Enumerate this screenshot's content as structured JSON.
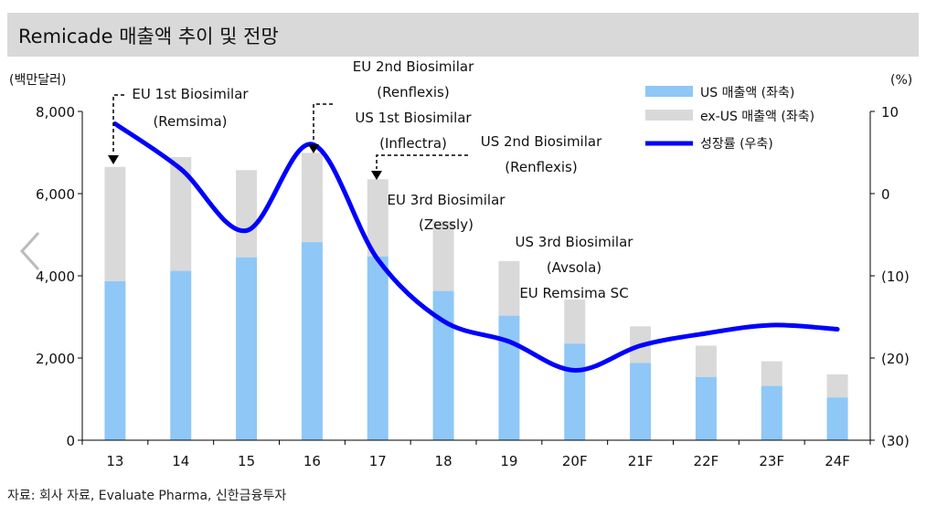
{
  "title": "Remicade 매출액 추이 및 전망",
  "source": "자료: 회사 자료, Evaluate Pharma, 신한금융투자",
  "chart_data": {
    "type": "bar",
    "categories": [
      "13",
      "14",
      "15",
      "16",
      "17",
      "18",
      "19",
      "20F",
      "21F",
      "22F",
      "23F",
      "24F"
    ],
    "series": [
      {
        "name": "US 매출액 (좌축)",
        "type": "bar",
        "axis": "left",
        "values": [
          3870,
          4120,
          4450,
          4820,
          4470,
          3630,
          3030,
          2350,
          1880,
          1540,
          1320,
          1040
        ]
      },
      {
        "name": "ex-US 매출액 (좌축)",
        "type": "bar",
        "axis": "left",
        "values": [
          2780,
          2770,
          2120,
          2170,
          1880,
          1700,
          1330,
          1070,
          890,
          760,
          600,
          560
        ]
      },
      {
        "name": "성장률 (우축)",
        "type": "line",
        "axis": "right",
        "values": [
          8.5,
          3.0,
          -4.5,
          6.0,
          -8.0,
          -15.5,
          -18.0,
          -21.5,
          -18.5,
          -17.0,
          -16.0,
          -16.5
        ]
      }
    ],
    "ylabel_left": "(백만달러)",
    "ylabel_right": "(%)",
    "ylim_left": [
      0,
      8000
    ],
    "ylim_right": [
      -30,
      10
    ],
    "yticks_left": [
      "8,000",
      "6,000",
      "4,000",
      "2,000",
      "0"
    ],
    "yticks_right": [
      "10",
      "0",
      "(10)",
      "(20)",
      "(30)"
    ],
    "legend_position": "top-right",
    "colors": {
      "us": "#8fc7f7",
      "exus": "#d9d9d9",
      "growth": "#0000ff"
    },
    "annotations": [
      {
        "lines": [
          "EU 1st Biosimilar",
          "(Remsima)"
        ],
        "category": "13"
      },
      {
        "lines": [
          "EU 2nd Biosimilar",
          "(Renflexis)",
          "US 1st Biosimilar",
          "(Inflectra)"
        ],
        "category": "16"
      },
      {
        "lines": [
          "US 2nd Biosimilar",
          "(Renflexis)"
        ],
        "category": "17"
      },
      {
        "lines": [
          "EU 3rd Biosimilar",
          "(Zessly)"
        ],
        "category": "17"
      },
      {
        "lines": [
          "US 3rd Biosimilar",
          "(Avsola)",
          "EU Remsima SC"
        ],
        "category": "19"
      }
    ]
  }
}
